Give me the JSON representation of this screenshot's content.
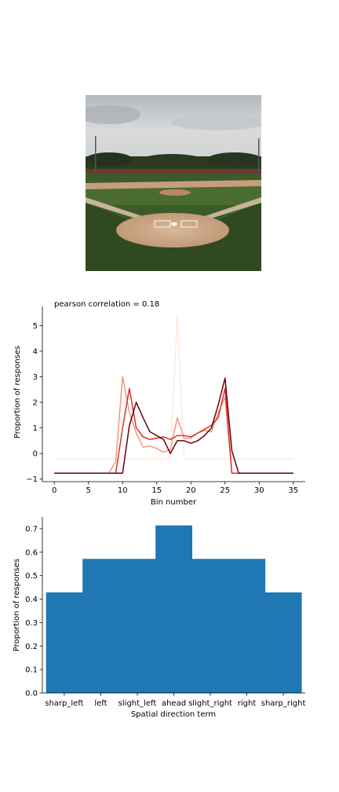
{
  "chart_data": [
    {
      "type": "line",
      "title": "pearson correlation = 0.18",
      "xlabel": "Bin number",
      "ylabel": "Proportion of responses",
      "xlim": [
        -1.75,
        36.75
      ],
      "ylim": [
        -1.1,
        5.75
      ],
      "xticks": [
        0,
        5,
        10,
        15,
        20,
        25,
        30,
        35
      ],
      "yticks": [
        -1,
        0,
        1,
        2,
        3,
        4,
        5
      ],
      "grid": false,
      "series": [
        {
          "color": "#fdebe2",
          "x": [
            0,
            1,
            2,
            3,
            4,
            5,
            6,
            7,
            8,
            9,
            10,
            11,
            12,
            13,
            14,
            15,
            16,
            17,
            18,
            19,
            20,
            21,
            22,
            23,
            24,
            25,
            26,
            27,
            28,
            29,
            30,
            31,
            32,
            33,
            34,
            35
          ],
          "values": [
            -0.2,
            -0.2,
            -0.2,
            -0.2,
            -0.2,
            -0.2,
            -0.2,
            -0.2,
            -0.2,
            -0.2,
            -0.2,
            -0.2,
            -0.2,
            -0.2,
            -0.2,
            -0.2,
            -0.2,
            -0.2,
            5.4,
            -0.2,
            -0.2,
            -0.2,
            -0.2,
            -0.2,
            -0.2,
            -0.2,
            -0.2,
            -0.2,
            -0.2,
            -0.2,
            -0.2,
            -0.2,
            -0.2,
            -0.2,
            -0.2,
            -0.2
          ]
        },
        {
          "color": "#f4987a",
          "x": [
            0,
            1,
            2,
            3,
            4,
            5,
            6,
            7,
            8,
            9,
            10,
            11,
            12,
            13,
            14,
            15,
            16,
            17,
            18,
            19,
            20,
            21,
            22,
            23,
            24,
            25,
            26,
            27,
            28,
            29,
            30,
            31,
            32,
            33,
            34,
            35
          ],
          "values": [
            -0.77,
            -0.77,
            -0.77,
            -0.77,
            -0.77,
            -0.77,
            -0.77,
            -0.77,
            -0.77,
            -0.3,
            3.0,
            1.6,
            0.8,
            0.25,
            0.3,
            0.2,
            0.05,
            0.15,
            1.4,
            0.6,
            0.6,
            0.8,
            0.9,
            0.85,
            1.6,
            2.2,
            -0.77,
            -0.77,
            -0.77,
            -0.77,
            -0.77,
            -0.77,
            -0.77,
            -0.77,
            -0.77,
            -0.77
          ]
        },
        {
          "color": "#d6352a",
          "x": [
            0,
            1,
            2,
            3,
            4,
            5,
            6,
            7,
            8,
            9,
            10,
            11,
            12,
            13,
            14,
            15,
            16,
            17,
            18,
            19,
            20,
            21,
            22,
            23,
            24,
            25,
            26,
            27,
            28,
            29,
            30,
            31,
            32,
            33,
            34,
            35
          ],
          "values": [
            -0.77,
            -0.77,
            -0.77,
            -0.77,
            -0.77,
            -0.77,
            -0.77,
            -0.77,
            -0.77,
            -0.77,
            1.0,
            2.55,
            1.0,
            0.65,
            0.55,
            0.6,
            0.65,
            0.55,
            0.7,
            0.7,
            0.65,
            0.8,
            0.95,
            1.1,
            1.4,
            2.55,
            -0.77,
            -0.77,
            -0.77,
            -0.77,
            -0.77,
            -0.77,
            -0.77,
            -0.77,
            -0.77,
            -0.77
          ]
        },
        {
          "color": "#67000d",
          "x": [
            0,
            1,
            2,
            3,
            4,
            5,
            6,
            7,
            8,
            9,
            10,
            11,
            12,
            13,
            14,
            15,
            16,
            17,
            18,
            19,
            20,
            21,
            22,
            23,
            24,
            25,
            26,
            27,
            28,
            29,
            30,
            31,
            32,
            33,
            34,
            35
          ],
          "values": [
            -0.77,
            -0.77,
            -0.77,
            -0.77,
            -0.77,
            -0.77,
            -0.77,
            -0.77,
            -0.77,
            -0.77,
            -0.77,
            1.1,
            2.0,
            1.4,
            0.85,
            0.7,
            0.55,
            0.0,
            0.5,
            0.5,
            0.4,
            0.5,
            0.7,
            1.0,
            1.9,
            2.95,
            0.1,
            -0.77,
            -0.77,
            -0.77,
            -0.77,
            -0.77,
            -0.77,
            -0.77,
            -0.77,
            -0.77
          ]
        }
      ]
    },
    {
      "type": "bar",
      "xlabel": "Spatial direction term",
      "ylabel": "Proportion of responses",
      "ylim": [
        0,
        0.75
      ],
      "yticks": [
        0.0,
        0.1,
        0.2,
        0.3,
        0.4,
        0.5,
        0.6,
        0.7
      ],
      "categories": [
        "sharp_left",
        "left",
        "slight_left",
        "ahead",
        "slight_right",
        "right",
        "sharp_right"
      ],
      "values": [
        0.4286,
        0.5714,
        0.5714,
        0.7143,
        0.5714,
        0.5714,
        0.4286
      ],
      "color": "#1f77b4",
      "grid": false
    }
  ],
  "photo": {
    "icon": "baseball-field-photo"
  }
}
